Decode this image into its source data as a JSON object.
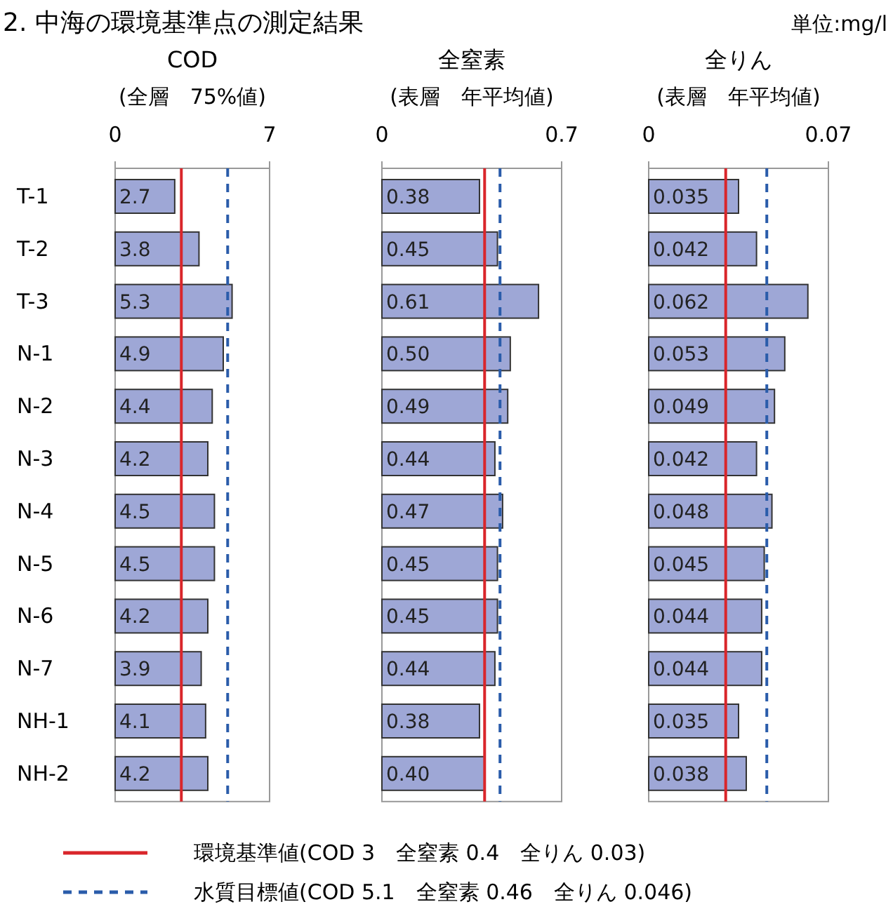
{
  "chart_data": [
    {
      "type": "bar",
      "orientation": "horizontal",
      "title": "COD",
      "subtitle": "(全層　75%値)",
      "categories": [
        "T-1",
        "T-2",
        "T-3",
        "N-1",
        "N-2",
        "N-3",
        "N-4",
        "N-5",
        "N-6",
        "N-7",
        "NH-1",
        "NH-2"
      ],
      "values": [
        2.7,
        3.8,
        5.3,
        4.9,
        4.4,
        4.2,
        4.5,
        4.5,
        4.2,
        3.9,
        4.1,
        4.2
      ],
      "value_labels": [
        "2.7",
        "3.8",
        "5.3",
        "4.9",
        "4.4",
        "4.2",
        "4.5",
        "4.5",
        "4.2",
        "3.9",
        "4.1",
        "4.2"
      ],
      "color": "#9ea7d6",
      "xlim": [
        0,
        7
      ],
      "xticks": [
        0,
        7
      ],
      "ref_lines": [
        {
          "axis": "x",
          "value": 3,
          "color": "#d9262b",
          "line_style": "solid"
        },
        {
          "axis": "x",
          "value": 5.1,
          "color": "#2a5caa",
          "line_style": "dashed"
        }
      ],
      "annotations": [
        "2. 中海の環境基準点の測定結果",
        "単位:mg/l",
        "環境基準値(COD 3　全窒素 0.4　全りん 0.03)",
        "水質目標値(COD 5.1　全窒素 0.46　全りん 0.046)"
      ]
    },
    {
      "type": "bar",
      "orientation": "horizontal",
      "title": "全窒素",
      "subtitle": "(表層　年平均値)",
      "categories": [
        null,
        null,
        null,
        null,
        null,
        null,
        null,
        null,
        null,
        null,
        null,
        null
      ],
      "values": [
        0.38,
        0.45,
        0.61,
        0.5,
        0.49,
        0.44,
        0.47,
        0.45,
        0.45,
        0.44,
        0.38,
        0.4
      ],
      "value_labels": [
        "0.38",
        "0.45",
        "0.61",
        "0.50",
        "0.49",
        "0.44",
        "0.47",
        "0.45",
        "0.45",
        "0.44",
        "0.38",
        "0.40"
      ],
      "color": "#9ea7d6",
      "xlim": [
        0,
        0.7
      ],
      "xticks": [
        0,
        0.7
      ],
      "ref_lines": [
        {
          "axis": "x",
          "value": 0.4,
          "color": "#d9262b",
          "line_style": "solid"
        },
        {
          "axis": "x",
          "value": 0.46,
          "color": "#2a5caa",
          "line_style": "dashed"
        }
      ]
    },
    {
      "type": "bar",
      "orientation": "horizontal",
      "title": "全りん",
      "subtitle": "(表層　年平均値)",
      "categories": [
        null,
        null,
        null,
        null,
        null,
        null,
        null,
        null,
        null,
        null,
        null,
        null
      ],
      "values": [
        0.035,
        0.042,
        0.062,
        0.053,
        0.049,
        0.042,
        0.048,
        0.045,
        0.044,
        0.044,
        0.035,
        0.038
      ],
      "value_labels": [
        "0.035",
        "0.042",
        "0.062",
        "0.053",
        "0.049",
        "0.042",
        "0.048",
        "0.045",
        "0.044",
        "0.044",
        "0.035",
        "0.038"
      ],
      "color": "#9ea7d6",
      "xlim": [
        0,
        0.07
      ],
      "xticks": [
        0,
        0.07
      ],
      "ref_lines": [
        {
          "axis": "x",
          "value": 0.03,
          "color": "#d9262b",
          "line_style": "solid"
        },
        {
          "axis": "x",
          "value": 0.046,
          "color": "#2a5caa",
          "line_style": "dashed"
        }
      ]
    }
  ]
}
